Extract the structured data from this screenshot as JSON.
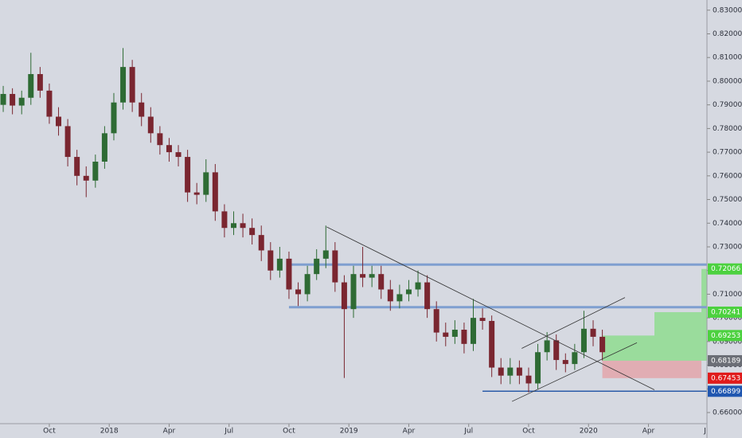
{
  "chart_data": {
    "type": "candlestick",
    "x": [
      -23,
      -21,
      -19,
      -17,
      -15,
      -13,
      -11,
      -9,
      -7,
      -5,
      -3,
      -1,
      1,
      3,
      5,
      7,
      9,
      11,
      13,
      15,
      17,
      19,
      21,
      23,
      25,
      27,
      29,
      31,
      33,
      35,
      37,
      39,
      41,
      43,
      45,
      47,
      49,
      51,
      53,
      55,
      57,
      59,
      61,
      63,
      65,
      67,
      69,
      71,
      73,
      75,
      77,
      79,
      81,
      83,
      85,
      87,
      89,
      91,
      93,
      95,
      97,
      99,
      101,
      103,
      105,
      107
    ],
    "ohlc": [
      [
        0.79,
        0.798,
        0.787,
        0.7946
      ],
      [
        0.7946,
        0.797,
        0.786,
        0.7897
      ],
      [
        0.7897,
        0.796,
        0.786,
        0.793
      ],
      [
        0.793,
        0.812,
        0.79,
        0.803
      ],
      [
        0.803,
        0.806,
        0.793,
        0.796
      ],
      [
        0.796,
        0.799,
        0.782,
        0.785
      ],
      [
        0.785,
        0.789,
        0.777,
        0.781
      ],
      [
        0.781,
        0.784,
        0.764,
        0.768
      ],
      [
        0.768,
        0.771,
        0.756,
        0.76
      ],
      [
        0.76,
        0.764,
        0.751,
        0.758
      ],
      [
        0.758,
        0.769,
        0.755,
        0.766
      ],
      [
        0.766,
        0.781,
        0.763,
        0.778
      ],
      [
        0.778,
        0.795,
        0.775,
        0.791
      ],
      [
        0.791,
        0.814,
        0.788,
        0.806
      ],
      [
        0.806,
        0.809,
        0.787,
        0.791
      ],
      [
        0.791,
        0.795,
        0.781,
        0.785
      ],
      [
        0.785,
        0.789,
        0.774,
        0.778
      ],
      [
        0.778,
        0.781,
        0.769,
        0.773
      ],
      [
        0.773,
        0.776,
        0.766,
        0.77
      ],
      [
        0.77,
        0.773,
        0.764,
        0.768
      ],
      [
        0.768,
        0.771,
        0.749,
        0.753
      ],
      [
        0.753,
        0.757,
        0.748,
        0.752
      ],
      [
        0.752,
        0.767,
        0.749,
        0.7615
      ],
      [
        0.7615,
        0.765,
        0.741,
        0.745
      ],
      [
        0.745,
        0.748,
        0.734,
        0.738
      ],
      [
        0.738,
        0.745,
        0.735,
        0.74
      ],
      [
        0.74,
        0.744,
        0.734,
        0.738
      ],
      [
        0.738,
        0.742,
        0.731,
        0.735
      ],
      [
        0.735,
        0.739,
        0.724,
        0.7285
      ],
      [
        0.7285,
        0.732,
        0.716,
        0.72
      ],
      [
        0.72,
        0.73,
        0.717,
        0.725
      ],
      [
        0.725,
        0.728,
        0.708,
        0.712
      ],
      [
        0.712,
        0.715,
        0.705,
        0.71
      ],
      [
        0.71,
        0.722,
        0.707,
        0.7185
      ],
      [
        0.7185,
        0.729,
        0.716,
        0.725
      ],
      [
        0.725,
        0.739,
        0.721,
        0.7285
      ],
      [
        0.7285,
        0.732,
        0.711,
        0.715
      ],
      [
        0.715,
        0.718,
        0.6746,
        0.7037
      ],
      [
        0.7037,
        0.722,
        0.7,
        0.7185
      ],
      [
        0.7185,
        0.73,
        0.713,
        0.717
      ],
      [
        0.717,
        0.722,
        0.713,
        0.7185
      ],
      [
        0.7185,
        0.722,
        0.708,
        0.712
      ],
      [
        0.712,
        0.716,
        0.703,
        0.707
      ],
      [
        0.707,
        0.714,
        0.704,
        0.71
      ],
      [
        0.71,
        0.716,
        0.707,
        0.712
      ],
      [
        0.712,
        0.72,
        0.709,
        0.715
      ],
      [
        0.715,
        0.718,
        0.7,
        0.7037
      ],
      [
        0.7037,
        0.707,
        0.69,
        0.6938
      ],
      [
        0.6938,
        0.698,
        0.688,
        0.692
      ],
      [
        0.692,
        0.699,
        0.689,
        0.695
      ],
      [
        0.695,
        0.698,
        0.685,
        0.689
      ],
      [
        0.689,
        0.708,
        0.686,
        0.7
      ],
      [
        0.7,
        0.704,
        0.695,
        0.6987
      ],
      [
        0.6987,
        0.701,
        0.675,
        0.679
      ],
      [
        0.679,
        0.683,
        0.672,
        0.6756
      ],
      [
        0.6756,
        0.683,
        0.672,
        0.679
      ],
      [
        0.679,
        0.682,
        0.672,
        0.6756
      ],
      [
        0.6756,
        0.679,
        0.6685,
        0.6723
      ],
      [
        0.6723,
        0.689,
        0.67,
        0.6855
      ],
      [
        0.6855,
        0.694,
        0.682,
        0.6905
      ],
      [
        0.6905,
        0.693,
        0.678,
        0.6822
      ],
      [
        0.6822,
        0.685,
        0.677,
        0.6805
      ],
      [
        0.6805,
        0.689,
        0.678,
        0.6855
      ],
      [
        0.6855,
        0.703,
        0.683,
        0.6954
      ],
      [
        0.6954,
        0.699,
        0.688,
        0.692
      ],
      [
        0.692,
        0.695,
        0.682,
        0.6855
      ]
    ],
    "up_color": "#2e6b34",
    "down_color": "#7a2630",
    "xlim": [
      -23.7,
      129.7
    ],
    "xticks": [
      {
        "value": -13,
        "label": "Oct"
      },
      {
        "value": 0,
        "label": "2018"
      },
      {
        "value": 13,
        "label": "Apr"
      },
      {
        "value": 26,
        "label": "Jul"
      },
      {
        "value": 39,
        "label": "Oct"
      },
      {
        "value": 52,
        "label": "2019"
      },
      {
        "value": 65,
        "label": "Apr"
      },
      {
        "value": 78,
        "label": "Jul"
      },
      {
        "value": 91,
        "label": "Oct"
      },
      {
        "value": 104,
        "label": "2020"
      },
      {
        "value": 117,
        "label": "Apr"
      },
      {
        "value": 130,
        "label": "Jul"
      }
    ],
    "ylim": [
      0.6553,
      0.8343
    ],
    "yticks": [
      {
        "value": 0.83,
        "label": "0.83000"
      },
      {
        "value": 0.82,
        "label": "0.82000"
      },
      {
        "value": 0.81,
        "label": "0.81000"
      },
      {
        "value": 0.8,
        "label": "0.80000"
      },
      {
        "value": 0.79,
        "label": "0.79000"
      },
      {
        "value": 0.78,
        "label": "0.78000"
      },
      {
        "value": 0.77,
        "label": "0.77000"
      },
      {
        "value": 0.76,
        "label": "0.76000"
      },
      {
        "value": 0.75,
        "label": "0.75000"
      },
      {
        "value": 0.74,
        "label": "0.74000"
      },
      {
        "value": 0.73,
        "label": "0.73000"
      },
      {
        "value": 0.72,
        "label": "0.72000"
      },
      {
        "value": 0.71,
        "label": "0.71000"
      },
      {
        "value": 0.7,
        "label": "0.70000"
      },
      {
        "value": 0.69,
        "label": "0.69000"
      },
      {
        "value": 0.68,
        "label": "0.68000"
      },
      {
        "value": 0.67,
        "label": "0.67000"
      },
      {
        "value": 0.66,
        "label": "0.66000"
      }
    ],
    "levels": [
      {
        "value": 0.7225,
        "from": 39,
        "color": "#7f9fd0"
      },
      {
        "value": 0.7045,
        "from": 39,
        "color": "#7f9fd0"
      },
      {
        "value": 0.66899,
        "from": 81,
        "color": "#2a5aa8"
      }
    ],
    "trend_lines": [
      [
        [
          47.2,
          0.7384
        ],
        [
          118.3,
          0.6696
        ]
      ],
      [
        [
          87.4,
          0.6647
        ],
        [
          114.5,
          0.6895
        ]
      ],
      [
        [
          89.5,
          0.6871
        ],
        [
          111.9,
          0.7086
        ]
      ]
    ],
    "zones": [
      {
        "from": 107,
        "to": 118.3,
        "low": 0.6819,
        "high": 0.69253,
        "color": "#8fdc8f"
      },
      {
        "from": 118.3,
        "to": 128.5,
        "low": 0.6819,
        "high": 0.70241,
        "color": "#8fdc8f"
      },
      {
        "from": 128.5,
        "to": 129.7,
        "low": 0.6819,
        "high": 0.72066,
        "color": "#8fdc8f"
      },
      {
        "from": 107,
        "to": 128.5,
        "low": 0.67453,
        "high": 0.6819,
        "color": "#e3a4aa"
      }
    ],
    "price_labels": [
      {
        "value": 0.72066,
        "label": "0.72066",
        "color": "#4cd13f"
      },
      {
        "value": 0.70241,
        "label": "0.70241",
        "color": "#4cd13f"
      },
      {
        "value": 0.69253,
        "label": "0.69253",
        "color": "#4cd13f"
      },
      {
        "value": 0.68189,
        "label": "0.68189",
        "color": "#6b6e76"
      },
      {
        "value": 0.67453,
        "label": "0.67453",
        "color": "#e01b1b"
      },
      {
        "value": 0.66899,
        "label": "0.66899",
        "color": "#1f56b0"
      }
    ]
  }
}
